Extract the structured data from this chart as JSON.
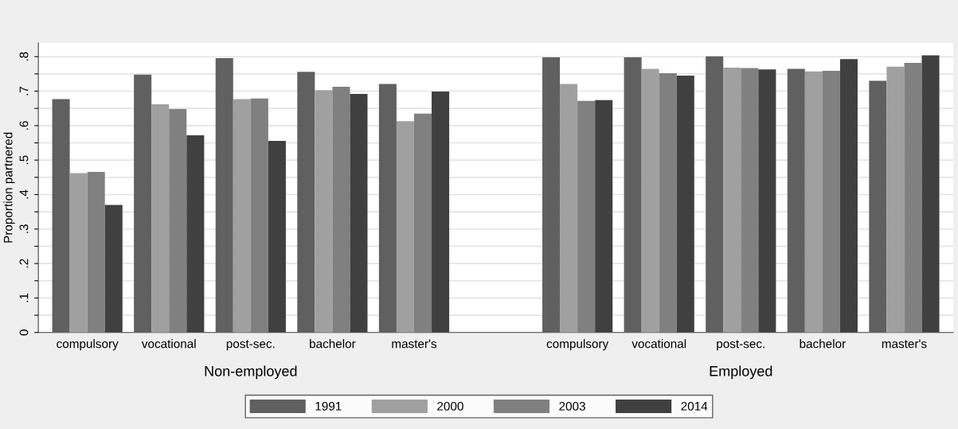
{
  "chart_data": {
    "type": "bar",
    "ylabel": "Proportion partnered",
    "categories": [
      "compulsory",
      "vocational",
      "post-sec.",
      "bachelor",
      "master's",
      null,
      "compulsory",
      "vocational",
      "post-sec.",
      "bachelor",
      "master's"
    ],
    "series": [
      {
        "name": "1991",
        "color": "#606060",
        "values": [
          0.677,
          0.748,
          0.796,
          0.756,
          0.721,
          null,
          0.798,
          0.798,
          0.801,
          0.765,
          0.73
        ]
      },
      {
        "name": "2000",
        "color": "#a0a0a0",
        "values": [
          0.462,
          0.662,
          0.677,
          0.703,
          0.613,
          null,
          0.721,
          0.765,
          0.768,
          0.757,
          0.771
        ]
      },
      {
        "name": "2003",
        "color": "#808080",
        "values": [
          0.466,
          0.648,
          0.679,
          0.713,
          0.635,
          null,
          0.672,
          0.752,
          0.767,
          0.759,
          0.782
        ]
      },
      {
        "name": "2014",
        "color": "#404040",
        "values": [
          0.37,
          0.572,
          0.556,
          0.692,
          0.699,
          null,
          0.674,
          0.745,
          0.763,
          0.793,
          0.804
        ]
      }
    ],
    "annotations": [
      "Non-employed",
      "Employed"
    ],
    "ylim": [
      0,
      0.84
    ],
    "yticks": [
      {
        "value": 0,
        "label": "0"
      },
      {
        "value": 0.05,
        "label": null
      },
      {
        "value": 0.1,
        "label": ".1"
      },
      {
        "value": 0.15,
        "label": null
      },
      {
        "value": 0.2,
        "label": ".2"
      },
      {
        "value": 0.25,
        "label": null
      },
      {
        "value": 0.3,
        "label": ".3"
      },
      {
        "value": 0.35,
        "label": null
      },
      {
        "value": 0.4,
        "label": ".4"
      },
      {
        "value": 0.45,
        "label": null
      },
      {
        "value": 0.5,
        "label": ".5"
      },
      {
        "value": 0.55,
        "label": null
      },
      {
        "value": 0.6,
        "label": ".6"
      },
      {
        "value": 0.65,
        "label": null
      },
      {
        "value": 0.7,
        "label": ".7"
      },
      {
        "value": 0.75,
        "label": null
      },
      {
        "value": 0.8,
        "label": ".8"
      }
    ],
    "grid": "y",
    "legend": "bottom"
  }
}
